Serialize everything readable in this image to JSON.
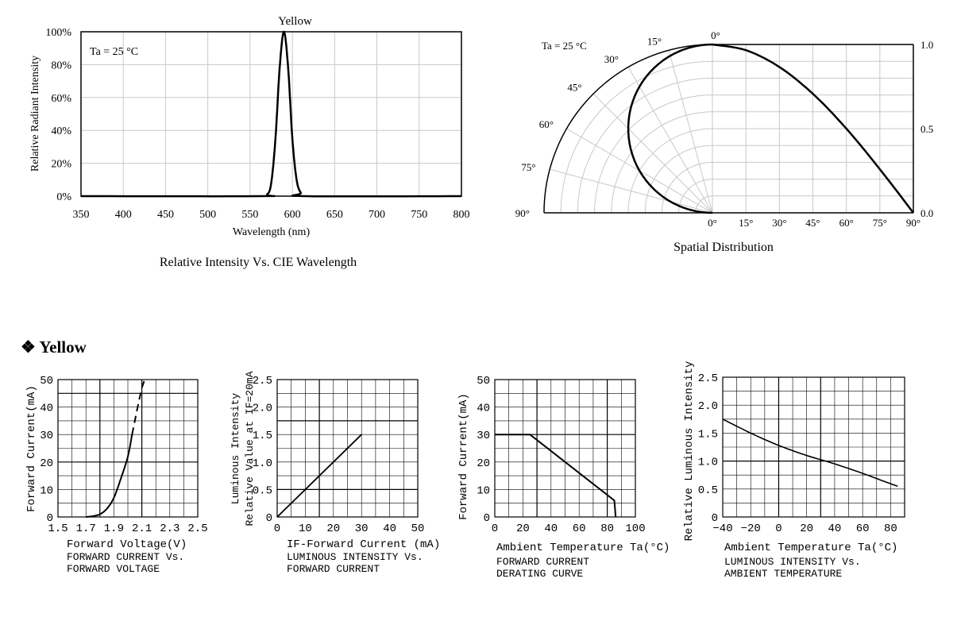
{
  "section_heading": "Yellow",
  "section_bullet": "❖",
  "colors": {
    "curve": "#000000",
    "grid_light": "#c8c8c8",
    "grid_dark": "#000000"
  },
  "chart_data": [
    {
      "id": "spectrum",
      "type": "line",
      "series_label": "Yellow",
      "annotation": "Ta = 25 °C",
      "ylabel": "Relative Radiant Intensity",
      "xlabel": "Wavelength (nm)",
      "caption": "Relative Intensity Vs. CIE Wavelength",
      "xlim": [
        350,
        800
      ],
      "ylim": [
        0,
        100
      ],
      "x_ticks": [
        "350",
        "400",
        "450",
        "500",
        "550",
        "600",
        "650",
        "700",
        "750",
        "800"
      ],
      "y_ticks": [
        "0%",
        "20%",
        "40%",
        "60%",
        "80%",
        "100%"
      ],
      "peak_nm": 590,
      "points": [
        [
          350,
          0
        ],
        [
          560,
          0
        ],
        [
          570,
          1
        ],
        [
          575,
          8
        ],
        [
          580,
          35
        ],
        [
          585,
          78
        ],
        [
          590,
          100
        ],
        [
          595,
          78
        ],
        [
          600,
          35
        ],
        [
          605,
          10
        ],
        [
          610,
          2
        ],
        [
          615,
          0
        ],
        [
          800,
          0
        ]
      ]
    },
    {
      "id": "spatial",
      "type": "polar",
      "annotation": "Ta = 25 °C",
      "caption": "Spatial Distribution",
      "angle_labels": [
        "0°",
        "15°",
        "30°",
        "45°",
        "60°",
        "75°",
        "90°"
      ],
      "bottom_labels": [
        "0°",
        "15°",
        "30°",
        "45°",
        "60°",
        "75°",
        "90°"
      ],
      "right_labels": [
        "1.0",
        "0.5",
        "0.0"
      ],
      "angles_deg": [
        0,
        15,
        30,
        45,
        60,
        75,
        90
      ],
      "intensity": [
        1.0,
        0.966,
        0.866,
        0.707,
        0.5,
        0.259,
        0.0
      ]
    },
    {
      "id": "iv",
      "type": "line",
      "ylabel": "Forward Current(mA)",
      "xlabel": "Forward Voltage(V)",
      "caption": [
        "FORWARD CURRENT Vs.",
        "FORWARD VOLTAGE"
      ],
      "xlim": [
        1.5,
        2.5
      ],
      "ylim": [
        0,
        50
      ],
      "x_ticks": [
        "1.5",
        "1.7",
        "1.9",
        "2.1",
        "2.3",
        "2.5"
      ],
      "y_ticks": [
        "0",
        "10",
        "20",
        "30",
        "40",
        "50"
      ],
      "solid": [
        [
          1.7,
          0
        ],
        [
          1.75,
          0.3
        ],
        [
          1.8,
          1
        ],
        [
          1.85,
          3
        ],
        [
          1.9,
          7
        ],
        [
          1.95,
          14
        ],
        [
          2.0,
          22
        ],
        [
          2.03,
          30
        ]
      ],
      "dashed": [
        [
          2.03,
          30
        ],
        [
          2.07,
          40
        ],
        [
          2.1,
          47
        ],
        [
          2.12,
          51
        ]
      ]
    },
    {
      "id": "li",
      "type": "line",
      "ylabel": [
        "Luminous Intensity",
        "Relative Value at IF=20mA"
      ],
      "xlabel": "IF-Forward Current (mA)",
      "caption": [
        "LUMINOUS INTENSITY Vs.",
        "FORWARD CURRENT"
      ],
      "xlim": [
        0,
        50
      ],
      "ylim": [
        0,
        2.5
      ],
      "x_ticks": [
        "0",
        "10",
        "20",
        "30",
        "40",
        "50"
      ],
      "y_ticks": [
        "0",
        "0.5",
        "1.0",
        "1.5",
        "2.0",
        "2.5"
      ],
      "points": [
        [
          0,
          0
        ],
        [
          30,
          1.5
        ]
      ]
    },
    {
      "id": "derating",
      "type": "line",
      "ylabel": "Forward Current(mA)",
      "xlabel": "Ambient Temperature Ta(°C)",
      "caption": [
        "FORWARD CURRENT",
        "DERATING CURVE"
      ],
      "xlim": [
        0,
        100
      ],
      "ylim": [
        0,
        50
      ],
      "x_ticks": [
        "0",
        "20",
        "40",
        "60",
        "80",
        "100"
      ],
      "y_ticks": [
        "0",
        "10",
        "20",
        "30",
        "40",
        "50"
      ],
      "points": [
        [
          0,
          30
        ],
        [
          25,
          30
        ],
        [
          85,
          6
        ],
        [
          86,
          0
        ]
      ]
    },
    {
      "id": "lt",
      "type": "line",
      "ylabel": "Relative Luminous Intensity",
      "xlabel": "Ambient Temperature Ta(°C)",
      "caption": [
        "LUMINOUS INTENSITY Vs.",
        "AMBIENT TEMPERATURE"
      ],
      "xlim": [
        -40,
        90
      ],
      "ylim": [
        0,
        2.5
      ],
      "x_ticks": [
        "-40",
        "-20",
        "0",
        "20",
        "40",
        "60",
        "80"
      ],
      "y_ticks": [
        "0",
        "0.5",
        "1.0",
        "1.5",
        "2.0",
        "2.5"
      ],
      "points": [
        [
          -40,
          1.75
        ],
        [
          -20,
          1.5
        ],
        [
          0,
          1.28
        ],
        [
          20,
          1.1
        ],
        [
          40,
          0.95
        ],
        [
          60,
          0.78
        ],
        [
          75,
          0.64
        ],
        [
          85,
          0.55
        ]
      ]
    }
  ]
}
